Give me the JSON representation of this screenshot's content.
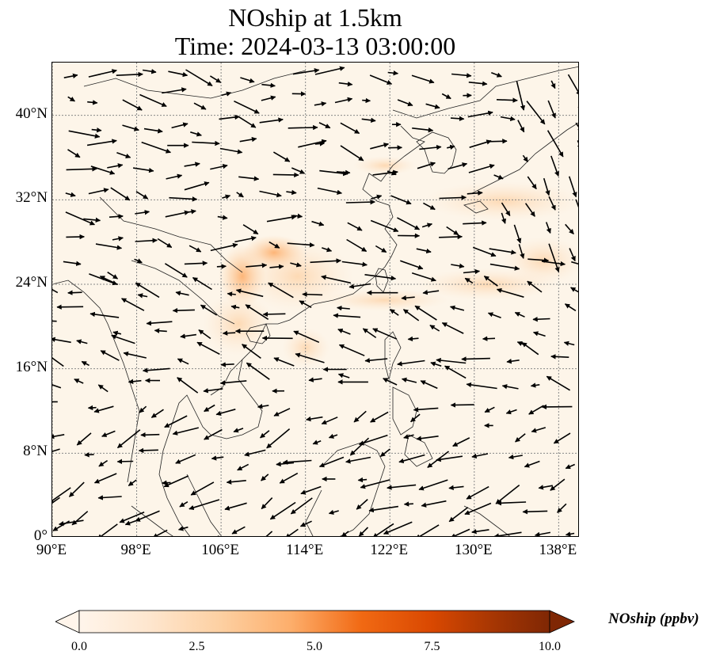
{
  "title": {
    "line1": "NOship at 1.5km",
    "line2": "Time: 2024-03-13 03:00:00"
  },
  "map": {
    "lon_range": [
      90,
      140
    ],
    "lat_range": [
      0,
      45
    ],
    "lat_ticks": [
      "0°",
      "8°N",
      "16°N",
      "24°N",
      "32°N",
      "40°N"
    ],
    "lon_ticks": [
      "90°E",
      "98°E",
      "106°E",
      "114°E",
      "122°E",
      "130°E",
      "138°E"
    ],
    "gridlines": true,
    "background_color": "#fdf5e9",
    "land_border_color": "#222222",
    "grid_color": "#888888"
  },
  "colorbar": {
    "label": "NOship (ppbv)",
    "ticks": [
      "0.0",
      "2.5",
      "5.0",
      "7.5",
      "10.0"
    ],
    "range": [
      0,
      10
    ],
    "colors": [
      "#fff5eb",
      "#fee6ce",
      "#fdd0a2",
      "#fdae6b",
      "#fd8d3c",
      "#f16913",
      "#d94801",
      "#a63603",
      "#7f2704"
    ]
  }
}
